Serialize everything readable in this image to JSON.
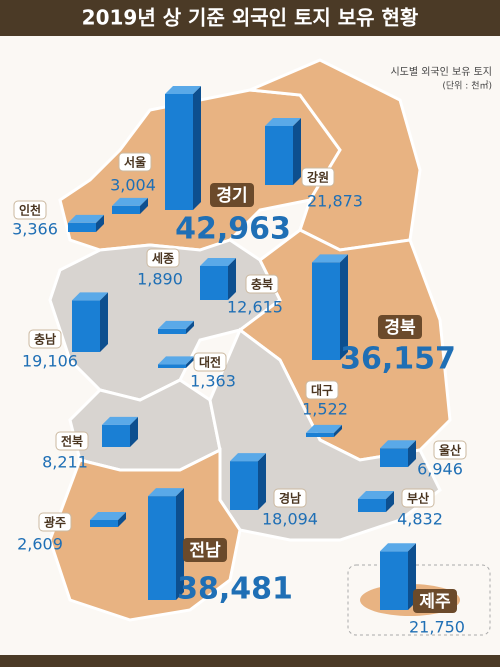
{
  "chart_data": {
    "type": "map-bar",
    "title": "2019년 상 기준 외국인 토지 보유 현황",
    "subtitle": "시도별 외국인 보유 토지",
    "unit": "(단위 : 천㎡)",
    "categories": [
      "서울",
      "인천",
      "경기",
      "강원",
      "세종",
      "충북",
      "충남",
      "대전",
      "경북",
      "대구",
      "전북",
      "울산",
      "경남",
      "부산",
      "광주",
      "전남",
      "제주"
    ],
    "values": [
      3004,
      3366,
      42963,
      21873,
      1890,
      12615,
      19106,
      1363,
      36157,
      1522,
      8211,
      6946,
      18094,
      4832,
      2609,
      38481,
      21750
    ],
    "value_labels": [
      "3,004",
      "3,366",
      "42,963",
      "21,873",
      "1,890",
      "12,615",
      "19,106",
      "1,363",
      "36,157",
      "1,522",
      "8,211",
      "6,946",
      "18,094",
      "4,832",
      "2,609",
      "38,481",
      "21,750"
    ],
    "color": "#1a7fd4"
  }
}
